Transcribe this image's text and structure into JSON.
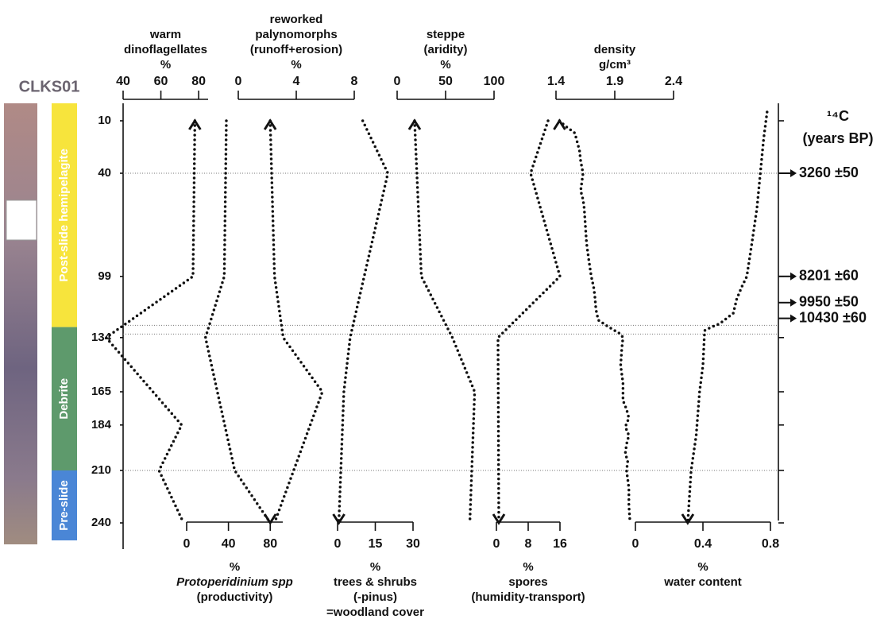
{
  "chart_data": {
    "type": "line",
    "core_label": "CLKS01",
    "ylim": [
      0,
      255
    ],
    "yticks": [
      10,
      40,
      99,
      134,
      165,
      184,
      210,
      240
    ],
    "units": [
      {
        "name": "Post-slide hemipelagite",
        "color": "#f7e43c",
        "top": 0,
        "bottom": 128
      },
      {
        "name": "Debrite",
        "color": "#5e9a6c",
        "top": 128,
        "bottom": 210
      },
      {
        "name": "Pre-slide",
        "color": "#4a86d6",
        "top": 210,
        "bottom": 250
      }
    ],
    "horizons": [
      40,
      127,
      132,
      210
    ],
    "age_title": [
      "¹⁴C",
      "(years BP)"
    ],
    "ages": [
      {
        "label": "3260 ±50",
        "depth": 40
      },
      {
        "label": "8201 ±60",
        "depth": 99
      },
      {
        "label": "9950 ±50",
        "depth": 114
      },
      {
        "label": "10430 ±60",
        "depth": 123
      }
    ],
    "panels": [
      {
        "title": [
          "warm",
          "dinoflagellates",
          "%"
        ],
        "axis": "top",
        "xlim": [
          40,
          85
        ],
        "xticks": [
          40,
          60,
          80
        ],
        "depth": [
          10,
          99,
          134,
          184,
          210,
          240
        ],
        "values": [
          78,
          77,
          31,
          71,
          59,
          72
        ],
        "color": "#111111"
      },
      {
        "title": [
          "%",
          "Protoperidinium spp",
          "(productivity)"
        ],
        "axis": "bottom",
        "xlim": [
          0,
          92
        ],
        "xticks": [
          0,
          40,
          80
        ],
        "depth": [
          10,
          99,
          134,
          210,
          240
        ],
        "values": [
          38,
          36,
          18,
          46,
          80
        ],
        "color": "#111111"
      },
      {
        "title": [
          "reworked",
          "palynomorphs",
          "(runoff+erosion)",
          "%"
        ],
        "axis": "top",
        "xlim": [
          0,
          8
        ],
        "xticks": [
          0,
          4,
          8
        ],
        "depth": [
          10,
          99,
          134,
          165,
          240
        ],
        "values": [
          2.2,
          2.5,
          3.1,
          5.8,
          2.5
        ],
        "color": "#111111"
      },
      {
        "title": [
          "%",
          "trees & shrubs",
          "(-pinus)",
          "=woodland cover"
        ],
        "axis": "bottom",
        "xlim": [
          0,
          30
        ],
        "xticks": [
          0,
          15,
          30
        ],
        "depth": [
          10,
          40,
          134,
          165,
          240
        ],
        "values": [
          10,
          20,
          5,
          2.5,
          0.5
        ],
        "color": "#111111"
      },
      {
        "title": [
          "steppe",
          "(aridity)",
          "%"
        ],
        "axis": "top",
        "xlim": [
          0,
          100
        ],
        "xticks": [
          0,
          50,
          100
        ],
        "depth": [
          10,
          99,
          134,
          165,
          240
        ],
        "values": [
          18,
          25,
          57,
          80,
          75
        ],
        "color": "#111111"
      },
      {
        "title": [
          "%",
          "spores",
          "(humidity-transport)"
        ],
        "axis": "bottom",
        "xlim": [
          0,
          16
        ],
        "xticks": [
          0,
          8,
          16
        ],
        "depth": [
          10,
          40,
          99,
          134,
          240
        ],
        "values": [
          13,
          8.6,
          16,
          0.4,
          0.6
        ],
        "color": "#111111"
      },
      {
        "title": [
          "density",
          "g/cm³"
        ],
        "axis": "top",
        "xlim": [
          1.4,
          2.4
        ],
        "xticks": [
          1.4,
          1.9,
          2.4
        ],
        "depth": [
          10,
          13,
          17,
          22,
          27,
          33,
          40,
          45,
          50,
          55,
          60,
          70,
          80,
          90,
          99,
          105,
          110,
          118,
          124,
          128,
          132,
          134,
          140,
          150,
          160,
          170,
          175,
          180,
          185,
          190,
          195,
          200,
          205,
          210,
          220,
          230,
          240
        ],
        "values": [
          1.43,
          1.48,
          1.56,
          1.58,
          1.6,
          1.61,
          1.63,
          1.62,
          1.61,
          1.63,
          1.64,
          1.65,
          1.66,
          1.68,
          1.7,
          1.72,
          1.73,
          1.74,
          1.76,
          1.85,
          1.95,
          1.97,
          1.96,
          1.95,
          1.97,
          1.97,
          2.0,
          2.02,
          1.99,
          2.02,
          2.0,
          1.99,
          2.01,
          2.0,
          2.02,
          2.02,
          2.03
        ],
        "color": "#111111"
      },
      {
        "title": [
          "%",
          "water content"
        ],
        "axis": "bottom",
        "xlim": [
          0,
          0.8
        ],
        "xticks": [
          0,
          0.4,
          0.8
        ],
        "depth": [
          5,
          20,
          40,
          60,
          80,
          99,
          105,
          112,
          120,
          126,
          128,
          130,
          150,
          165,
          190,
          210,
          225,
          240
        ],
        "values": [
          0.78,
          0.76,
          0.74,
          0.72,
          0.69,
          0.66,
          0.63,
          0.6,
          0.58,
          0.5,
          0.45,
          0.41,
          0.4,
          0.38,
          0.36,
          0.33,
          0.32,
          0.31
        ],
        "color": "#111111"
      }
    ]
  }
}
